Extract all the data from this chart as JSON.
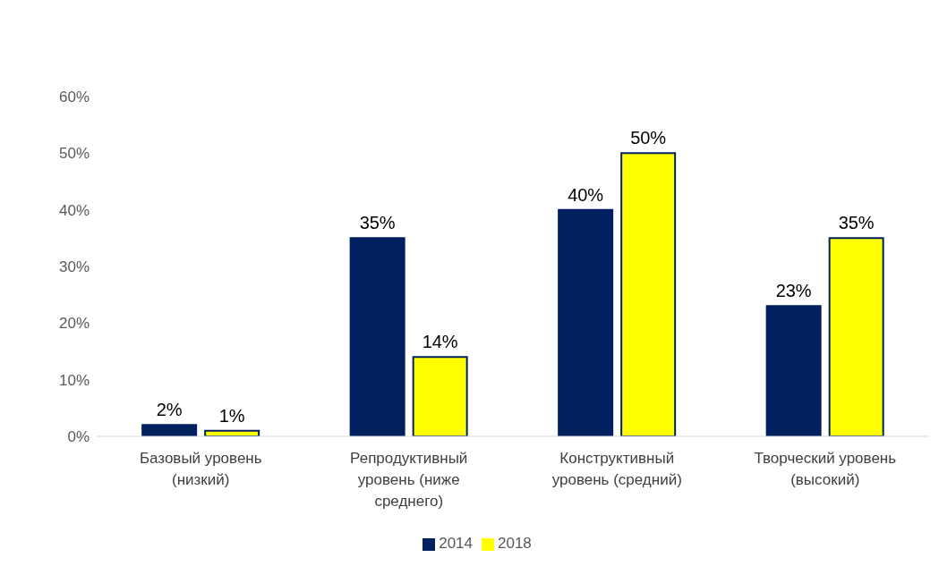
{
  "chart_data": {
    "type": "bar",
    "categories": [
      "Базовый уровень (низкий)",
      "Репродуктивный уровень (ниже среднего)",
      "Конструктивный уровень (средний)",
      "Творческий уровень (высокий)"
    ],
    "series": [
      {
        "name": "2014",
        "color": "#002060",
        "values": [
          2,
          35,
          40,
          23
        ],
        "value_labels": [
          "2%",
          "35%",
          "40%",
          "23%"
        ]
      },
      {
        "name": "2018",
        "color": "#ffff00",
        "values": [
          1,
          14,
          50,
          35
        ],
        "value_labels": [
          "1%",
          "14%",
          "50%",
          "35%"
        ]
      }
    ],
    "ylim": [
      0,
      60
    ],
    "yticks": [
      {
        "value": 0,
        "label": "0%"
      },
      {
        "value": 10,
        "label": "10%"
      },
      {
        "value": 20,
        "label": "20%"
      },
      {
        "value": 30,
        "label": "30%"
      },
      {
        "value": 40,
        "label": "40%"
      },
      {
        "value": 50,
        "label": "50%"
      },
      {
        "value": 60,
        "label": "60%"
      }
    ],
    "grid": false,
    "legend": "bottom"
  }
}
